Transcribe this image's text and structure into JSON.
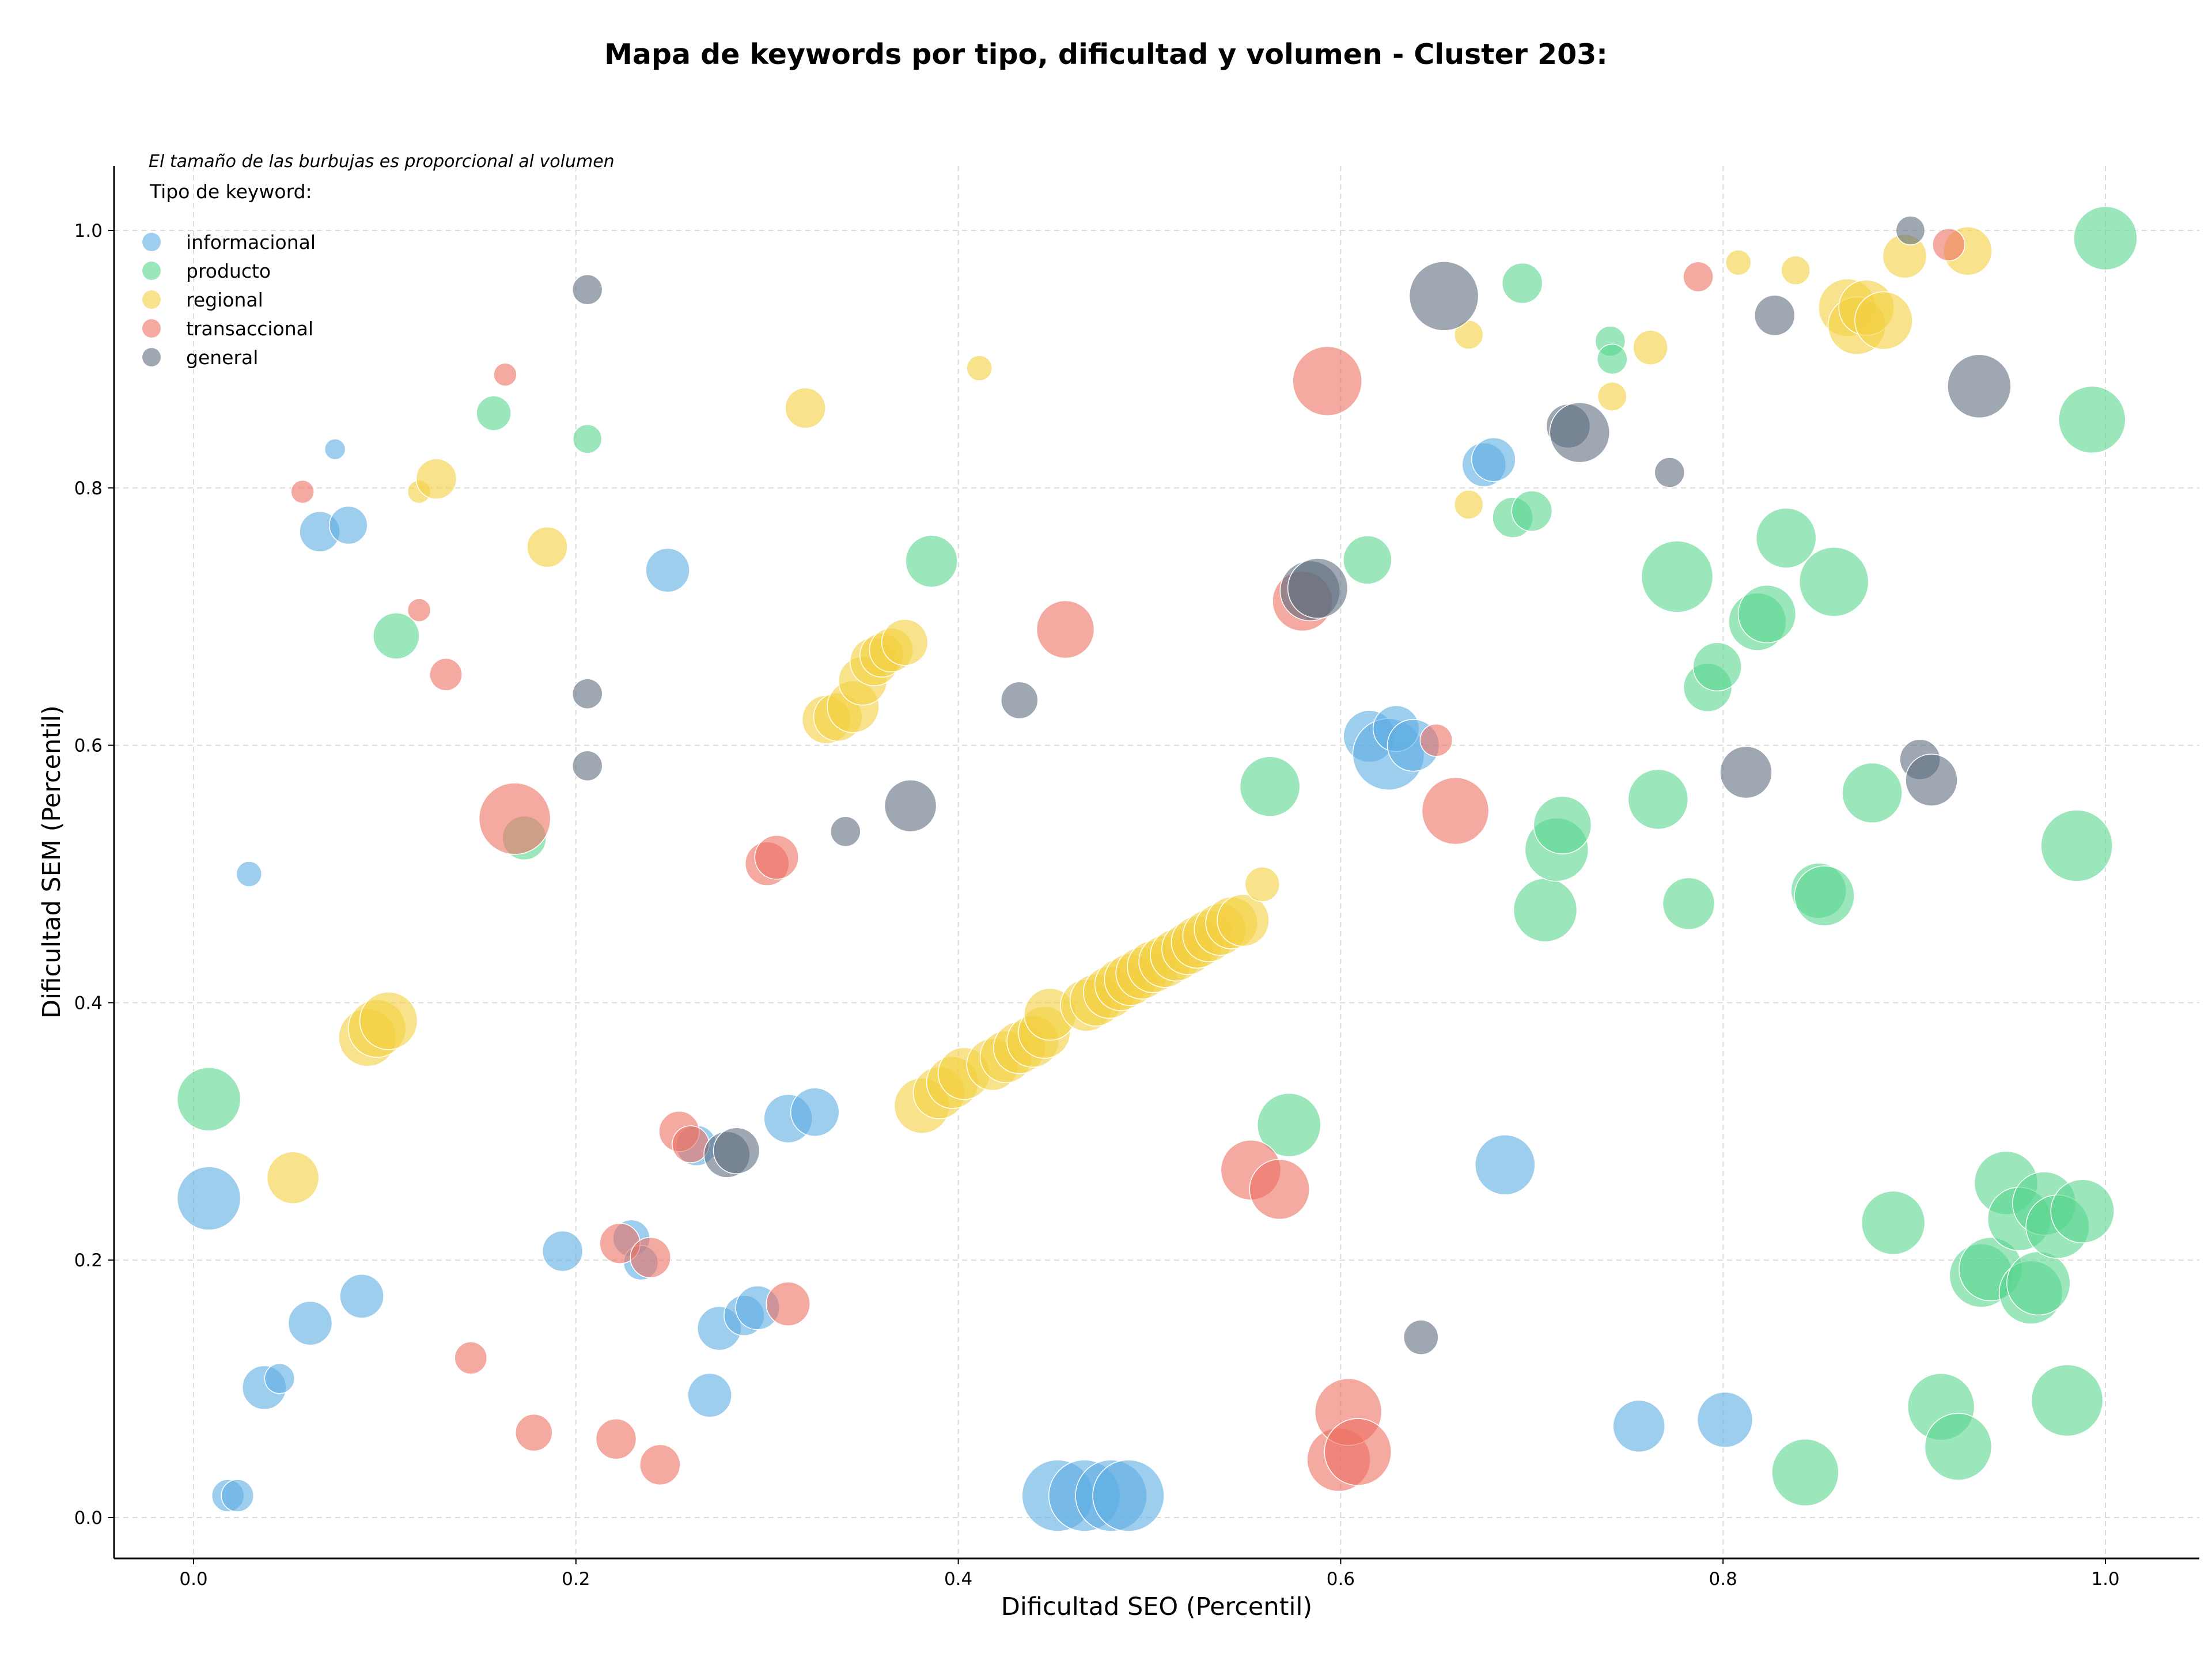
{
  "chart_data": {
    "type": "scatter",
    "subtype": "bubble",
    "title": "Mapa de keywords por tipo, dificultad y volumen - Cluster 203:",
    "xlabel": "Dificultad SEO (Percentil)",
    "ylabel": "Dificultad SEM (Percentil)",
    "xlim": [
      -0.04,
      1.05
    ],
    "ylim": [
      -0.03,
      1.05
    ],
    "xticks": [
      "0.0",
      "0.2",
      "0.4",
      "0.6",
      "0.8",
      "1.0"
    ],
    "yticks": [
      "0.0",
      "0.2",
      "0.4",
      "0.6",
      "0.8",
      "1.0"
    ],
    "grid": true,
    "note": "El tamaño de las burbujas es proporcional al volumen",
    "legend_title": "Tipo de keyword:",
    "legend_position": "top-left",
    "series": [
      {
        "name": "informacional",
        "color": "#5DADE2",
        "points": [
          [
            0.008,
            0.248,
            55
          ],
          [
            0.018,
            0.017,
            28
          ],
          [
            0.023,
            0.017,
            28
          ],
          [
            0.029,
            0.5,
            22
          ],
          [
            0.037,
            0.101,
            38
          ],
          [
            0.045,
            0.108,
            26
          ],
          [
            0.061,
            0.151,
            38
          ],
          [
            0.066,
            0.766,
            35
          ],
          [
            0.074,
            0.83,
            18
          ],
          [
            0.081,
            0.771,
            33
          ],
          [
            0.088,
            0.172,
            38
          ],
          [
            0.193,
            0.207,
            35
          ],
          [
            0.229,
            0.217,
            32
          ],
          [
            0.234,
            0.198,
            30
          ],
          [
            0.248,
            0.736,
            38
          ],
          [
            0.263,
            0.289,
            35
          ],
          [
            0.27,
            0.095,
            38
          ],
          [
            0.275,
            0.147,
            38
          ],
          [
            0.288,
            0.157,
            35
          ],
          [
            0.295,
            0.163,
            38
          ],
          [
            0.311,
            0.31,
            42
          ],
          [
            0.325,
            0.315,
            42
          ],
          [
            0.452,
            0.017,
            62
          ],
          [
            0.466,
            0.017,
            62
          ],
          [
            0.48,
            0.017,
            62
          ],
          [
            0.489,
            0.017,
            62
          ],
          [
            0.615,
            0.607,
            45
          ],
          [
            0.625,
            0.593,
            62
          ],
          [
            0.629,
            0.613,
            40
          ],
          [
            0.638,
            0.6,
            45
          ],
          [
            0.675,
            0.818,
            38
          ],
          [
            0.68,
            0.822,
            38
          ],
          [
            0.686,
            0.274,
            52
          ],
          [
            0.756,
            0.071,
            45
          ],
          [
            0.801,
            0.076,
            48
          ]
        ]
      },
      {
        "name": "producto",
        "color": "#58D68D",
        "points": [
          [
            0.008,
            0.325,
            55
          ],
          [
            0.106,
            0.685,
            40
          ],
          [
            0.157,
            0.858,
            30
          ],
          [
            0.173,
            0.528,
            38
          ],
          [
            0.206,
            0.838,
            25
          ],
          [
            0.386,
            0.743,
            45
          ],
          [
            0.563,
            0.568,
            52
          ],
          [
            0.573,
            0.305,
            55
          ],
          [
            0.614,
            0.744,
            42
          ],
          [
            0.69,
            0.777,
            35
          ],
          [
            0.695,
            0.959,
            35
          ],
          [
            0.7,
            0.782,
            35
          ],
          [
            0.707,
            0.472,
            55
          ],
          [
            0.713,
            0.519,
            55
          ],
          [
            0.716,
            0.538,
            50
          ],
          [
            0.741,
            0.914,
            26
          ],
          [
            0.742,
            0.9,
            26
          ],
          [
            0.766,
            0.558,
            52
          ],
          [
            0.776,
            0.731,
            62
          ],
          [
            0.782,
            0.477,
            45
          ],
          [
            0.792,
            0.645,
            42
          ],
          [
            0.797,
            0.661,
            42
          ],
          [
            0.818,
            0.696,
            50
          ],
          [
            0.823,
            0.702,
            50
          ],
          [
            0.833,
            0.761,
            52
          ],
          [
            0.843,
            0.035,
            58
          ],
          [
            0.85,
            0.487,
            48
          ],
          [
            0.853,
            0.483,
            52
          ],
          [
            0.858,
            0.727,
            60
          ],
          [
            0.878,
            0.563,
            52
          ],
          [
            0.889,
            0.229,
            55
          ],
          [
            0.914,
            0.086,
            58
          ],
          [
            0.923,
            0.055,
            58
          ],
          [
            0.935,
            0.188,
            55
          ],
          [
            0.94,
            0.193,
            55
          ],
          [
            0.948,
            0.26,
            55
          ],
          [
            0.955,
            0.232,
            55
          ],
          [
            0.961,
            0.175,
            55
          ],
          [
            0.965,
            0.182,
            55
          ],
          [
            0.968,
            0.244,
            55
          ],
          [
            0.975,
            0.226,
            55
          ],
          [
            0.98,
            0.091,
            62
          ],
          [
            0.985,
            0.522,
            62
          ],
          [
            0.988,
            0.238,
            55
          ],
          [
            0.993,
            0.853,
            58
          ],
          [
            1.0,
            0.994,
            55
          ]
        ]
      },
      {
        "name": "regional",
        "color": "#F4D03F",
        "points": [
          [
            0.052,
            0.264,
            45
          ],
          [
            0.091,
            0.373,
            50
          ],
          [
            0.096,
            0.38,
            50
          ],
          [
            0.102,
            0.386,
            50
          ],
          [
            0.118,
            0.797,
            20
          ],
          [
            0.127,
            0.807,
            35
          ],
          [
            0.185,
            0.754,
            35
          ],
          [
            0.32,
            0.862,
            35
          ],
          [
            0.331,
            0.62,
            42
          ],
          [
            0.337,
            0.622,
            42
          ],
          [
            0.345,
            0.63,
            45
          ],
          [
            0.35,
            0.65,
            42
          ],
          [
            0.356,
            0.665,
            42
          ],
          [
            0.36,
            0.67,
            38
          ],
          [
            0.365,
            0.674,
            38
          ],
          [
            0.372,
            0.68,
            40
          ],
          [
            0.381,
            0.32,
            48
          ],
          [
            0.39,
            0.33,
            45
          ],
          [
            0.397,
            0.338,
            45
          ],
          [
            0.403,
            0.345,
            45
          ],
          [
            0.411,
            0.893,
            22
          ],
          [
            0.418,
            0.352,
            45
          ],
          [
            0.425,
            0.358,
            45
          ],
          [
            0.432,
            0.365,
            45
          ],
          [
            0.439,
            0.37,
            45
          ],
          [
            0.445,
            0.377,
            45
          ],
          [
            0.448,
            0.391,
            45
          ],
          [
            0.467,
            0.398,
            45
          ],
          [
            0.472,
            0.402,
            45
          ],
          [
            0.479,
            0.408,
            45
          ],
          [
            0.485,
            0.414,
            45
          ],
          [
            0.49,
            0.418,
            45
          ],
          [
            0.496,
            0.423,
            45
          ],
          [
            0.502,
            0.428,
            45
          ],
          [
            0.508,
            0.432,
            45
          ],
          [
            0.514,
            0.437,
            45
          ],
          [
            0.52,
            0.442,
            45
          ],
          [
            0.525,
            0.447,
            45
          ],
          [
            0.531,
            0.452,
            45
          ],
          [
            0.537,
            0.457,
            45
          ],
          [
            0.543,
            0.462,
            45
          ],
          [
            0.549,
            0.464,
            45
          ],
          [
            0.559,
            0.492,
            30
          ],
          [
            0.667,
            0.919,
            25
          ],
          [
            0.667,
            0.787,
            25
          ],
          [
            0.742,
            0.871,
            25
          ],
          [
            0.762,
            0.909,
            30
          ],
          [
            0.808,
            0.975,
            22
          ],
          [
            0.838,
            0.969,
            25
          ],
          [
            0.865,
            0.94,
            50
          ],
          [
            0.87,
            0.926,
            50
          ],
          [
            0.875,
            0.94,
            48
          ],
          [
            0.884,
            0.93,
            50
          ],
          [
            0.895,
            0.98,
            38
          ],
          [
            0.928,
            0.984,
            42
          ]
        ]
      },
      {
        "name": "transaccional",
        "color": "#EC7063",
        "points": [
          [
            0.057,
            0.797,
            20
          ],
          [
            0.118,
            0.705,
            20
          ],
          [
            0.132,
            0.655,
            28
          ],
          [
            0.145,
            0.124,
            28
          ],
          [
            0.163,
            0.888,
            20
          ],
          [
            0.168,
            0.543,
            62
          ],
          [
            0.178,
            0.066,
            32
          ],
          [
            0.221,
            0.061,
            35
          ],
          [
            0.223,
            0.213,
            35
          ],
          [
            0.239,
            0.202,
            35
          ],
          [
            0.244,
            0.041,
            35
          ],
          [
            0.254,
            0.3,
            35
          ],
          [
            0.26,
            0.29,
            32
          ],
          [
            0.3,
            0.508,
            38
          ],
          [
            0.305,
            0.513,
            38
          ],
          [
            0.311,
            0.166,
            38
          ],
          [
            0.456,
            0.69,
            50
          ],
          [
            0.553,
            0.27,
            52
          ],
          [
            0.568,
            0.255,
            52
          ],
          [
            0.58,
            0.712,
            52
          ],
          [
            0.593,
            0.883,
            60
          ],
          [
            0.599,
            0.045,
            55
          ],
          [
            0.604,
            0.082,
            58
          ],
          [
            0.609,
            0.051,
            58
          ],
          [
            0.65,
            0.604,
            28
          ],
          [
            0.66,
            0.549,
            58
          ],
          [
            0.787,
            0.964,
            26
          ],
          [
            0.918,
            0.989,
            28
          ]
        ]
      },
      {
        "name": "general",
        "color": "#5D6D7E",
        "points": [
          [
            0.206,
            0.954,
            26
          ],
          [
            0.206,
            0.64,
            26
          ],
          [
            0.206,
            0.584,
            26
          ],
          [
            0.279,
            0.282,
            40
          ],
          [
            0.284,
            0.285,
            40
          ],
          [
            0.341,
            0.533,
            26
          ],
          [
            0.375,
            0.553,
            45
          ],
          [
            0.432,
            0.635,
            32
          ],
          [
            0.584,
            0.72,
            52
          ],
          [
            0.588,
            0.722,
            52
          ],
          [
            0.642,
            0.14,
            30
          ],
          [
            0.654,
            0.949,
            60
          ],
          [
            0.719,
            0.848,
            38
          ],
          [
            0.725,
            0.843,
            52
          ],
          [
            0.772,
            0.812,
            26
          ],
          [
            0.812,
            0.579,
            45
          ],
          [
            0.827,
            0.934,
            35
          ],
          [
            0.898,
            1.0,
            25
          ],
          [
            0.903,
            0.589,
            35
          ],
          [
            0.909,
            0.573,
            45
          ],
          [
            0.934,
            0.879,
            55
          ]
        ]
      }
    ]
  }
}
